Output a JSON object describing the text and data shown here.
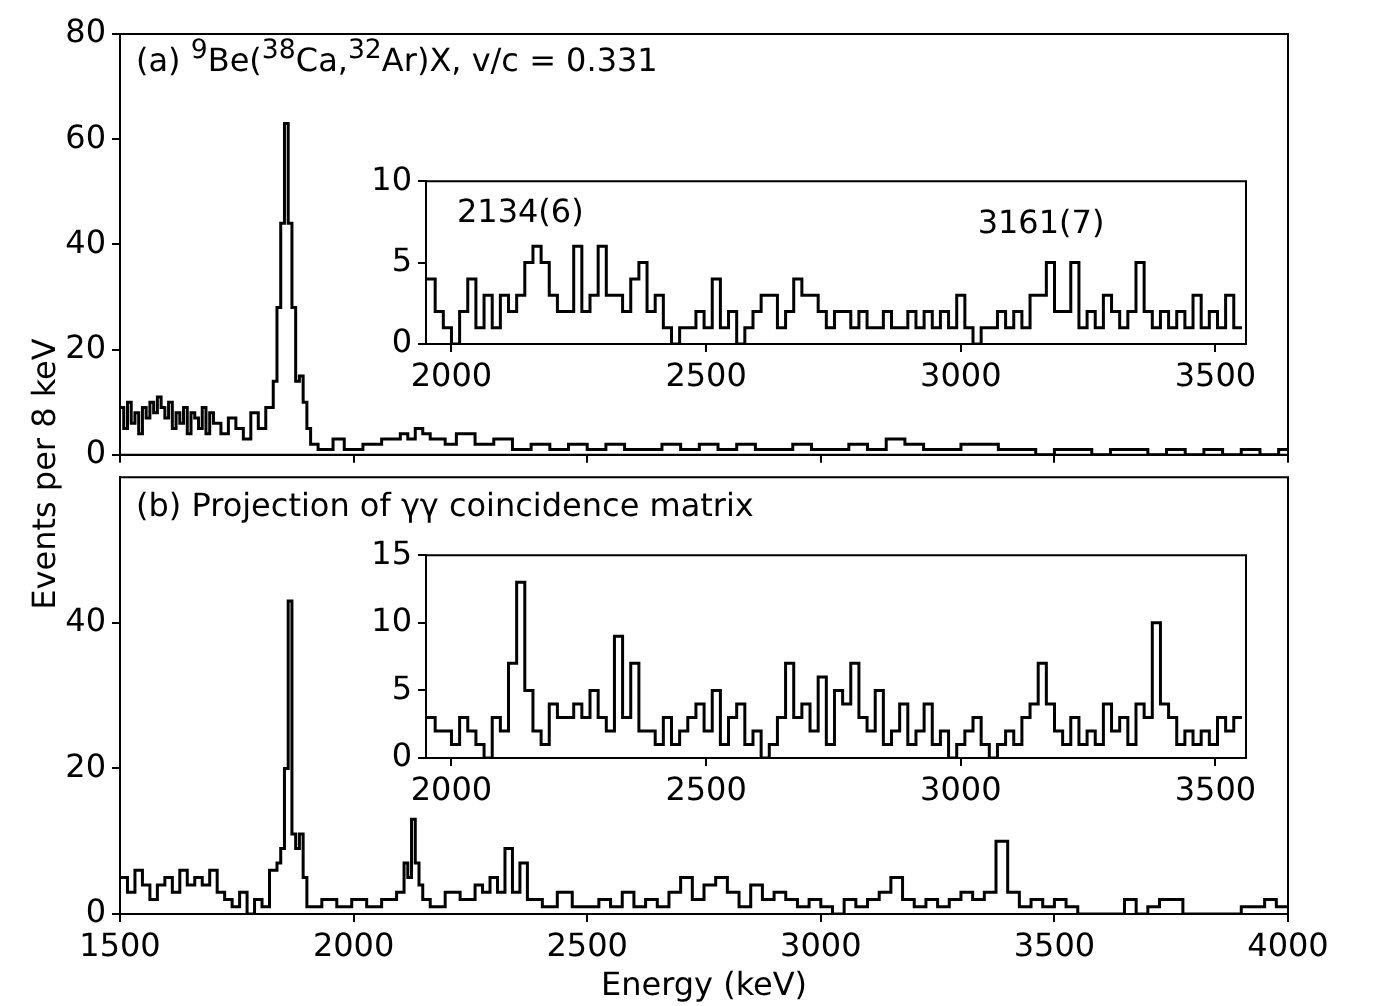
{
  "chart_data": [
    {
      "type": "histogram",
      "title": "(a) $^{9}$Be($^{38}$Ca,$^{32}$Ar)X, v/c = 0.331",
      "ylabel": "Events per 8 keV",
      "color": "#000000",
      "bins": [
        1500,
        1508,
        1516,
        1524,
        1532,
        1540,
        1548,
        1556,
        1564,
        1572,
        1580,
        1588,
        1596,
        1604,
        1612,
        1620,
        1628,
        1636,
        1644,
        1652,
        1660,
        1668,
        1676,
        1684,
        1692,
        1700,
        1716,
        1732,
        1748,
        1764,
        1780,
        1796,
        1812,
        1828,
        1836,
        1844,
        1852,
        1860,
        1868,
        1876,
        1884,
        1892,
        1900,
        1908,
        1924,
        1956,
        1980,
        2020,
        2060,
        2100,
        2116,
        2132,
        2148,
        2164,
        2196,
        2220,
        2260,
        2300,
        2340,
        2380,
        2420,
        2460,
        2500,
        2540,
        2580,
        2620,
        2660,
        2700,
        2740,
        2780,
        2820,
        2860,
        2900,
        2940,
        2980,
        3020,
        3060,
        3100,
        3140,
        3180,
        3220,
        3260,
        3300,
        3340,
        3380,
        3420,
        3460,
        3500,
        3540,
        3580,
        3620,
        3660,
        3700,
        3740,
        3780,
        3820,
        3860,
        3900,
        3940,
        3980,
        4000
      ],
      "values": [
        9,
        5,
        10,
        6,
        8,
        4,
        9,
        7,
        10,
        8,
        11,
        9,
        7,
        10,
        5,
        8,
        6,
        9,
        4,
        8,
        7,
        5,
        9,
        4,
        8,
        6,
        4,
        7,
        5,
        3,
        8,
        5,
        9,
        14,
        28,
        44,
        63,
        44,
        28,
        14,
        15,
        10,
        5,
        2,
        1,
        3,
        1,
        2,
        3,
        4,
        3,
        5,
        4,
        3,
        2,
        4,
        2,
        3,
        1,
        2,
        1,
        2,
        1,
        2,
        1,
        1,
        2,
        1,
        2,
        1,
        2,
        1,
        1,
        2,
        1,
        1,
        2,
        1,
        3,
        2,
        1,
        1,
        2,
        2,
        1,
        1,
        0,
        1,
        1,
        0,
        1,
        1,
        0,
        1,
        0,
        1,
        0,
        1,
        0,
        1
      ],
      "xlim": [
        1500,
        4000
      ],
      "xticks": [
        1500,
        2000,
        2500,
        3000,
        3500,
        4000
      ],
      "ylim": [
        0,
        80
      ],
      "yticks": [
        0,
        20,
        40,
        60,
        80
      ],
      "tick_labels": "y"
    },
    {
      "type": "histogram",
      "color": "#000000",
      "bins": [
        1952,
        1968,
        1984,
        2000,
        2016,
        2032,
        2048,
        2064,
        2080,
        2096,
        2112,
        2128,
        2144,
        2160,
        2176,
        2192,
        2208,
        2224,
        2240,
        2256,
        2272,
        2288,
        2304,
        2320,
        2336,
        2352,
        2368,
        2384,
        2400,
        2416,
        2432,
        2448,
        2464,
        2480,
        2496,
        2512,
        2528,
        2544,
        2560,
        2576,
        2592,
        2608,
        2624,
        2640,
        2656,
        2672,
        2688,
        2704,
        2720,
        2736,
        2752,
        2768,
        2784,
        2800,
        2816,
        2832,
        2848,
        2864,
        2880,
        2896,
        2912,
        2928,
        2944,
        2960,
        2976,
        2992,
        3008,
        3024,
        3040,
        3056,
        3072,
        3088,
        3104,
        3120,
        3136,
        3152,
        3168,
        3184,
        3200,
        3216,
        3232,
        3248,
        3264,
        3280,
        3296,
        3312,
        3328,
        3344,
        3360,
        3376,
        3392,
        3408,
        3424,
        3440,
        3456,
        3472,
        3488,
        3504,
        3520,
        3536,
        3552
      ],
      "values": [
        4,
        2,
        1,
        0,
        2,
        4,
        1,
        3,
        1,
        3,
        2,
        3,
        5,
        6,
        5,
        3,
        2,
        2,
        6,
        2,
        3,
        6,
        3,
        3,
        2,
        4,
        5,
        2,
        3,
        1,
        0,
        1,
        1,
        2,
        1,
        4,
        1,
        2,
        0,
        1,
        2,
        3,
        3,
        1,
        2,
        4,
        3,
        3,
        2,
        1,
        2,
        2,
        1,
        2,
        1,
        1,
        2,
        1,
        1,
        2,
        1,
        2,
        1,
        2,
        1,
        3,
        1,
        0,
        1,
        1,
        2,
        1,
        2,
        1,
        3,
        3,
        5,
        2,
        2,
        5,
        1,
        2,
        1,
        3,
        2,
        1,
        2,
        5,
        2,
        1,
        2,
        1,
        2,
        1,
        3,
        1,
        2,
        1,
        3,
        1
      ],
      "xlim": [
        1950,
        3560
      ],
      "xticks": [
        2000,
        2500,
        3000,
        3500
      ],
      "ylim": [
        0,
        10
      ],
      "yticks": [
        0,
        5,
        10
      ],
      "annotations": [
        "2134(6)",
        "3161(7)"
      ]
    },
    {
      "type": "histogram",
      "title": "(b) Projection of γγ coincidence matrix",
      "xlabel": "Energy (keV)",
      "color": "#000000",
      "bins": [
        1500,
        1516,
        1532,
        1548,
        1564,
        1580,
        1596,
        1612,
        1628,
        1644,
        1660,
        1676,
        1692,
        1708,
        1724,
        1740,
        1756,
        1772,
        1788,
        1804,
        1820,
        1836,
        1844,
        1852,
        1860,
        1868,
        1876,
        1884,
        1892,
        1900,
        1932,
        1964,
        1996,
        2028,
        2060,
        2092,
        2108,
        2116,
        2124,
        2132,
        2140,
        2148,
        2164,
        2196,
        2228,
        2260,
        2276,
        2292,
        2308,
        2324,
        2340,
        2356,
        2372,
        2404,
        2436,
        2468,
        2500,
        2525,
        2550,
        2575,
        2600,
        2625,
        2650,
        2675,
        2700,
        2725,
        2750,
        2775,
        2800,
        2825,
        2850,
        2875,
        2900,
        2925,
        2950,
        2975,
        3000,
        3025,
        3050,
        3075,
        3100,
        3125,
        3150,
        3175,
        3200,
        3225,
        3250,
        3275,
        3300,
        3325,
        3350,
        3375,
        3400,
        3425,
        3450,
        3475,
        3500,
        3525,
        3550,
        3575,
        3600,
        3625,
        3650,
        3675,
        3700,
        3725,
        3750,
        3775,
        3800,
        3825,
        3850,
        3875,
        3900,
        3925,
        3950,
        3975,
        4000
      ],
      "values": [
        5,
        3,
        6,
        4,
        2,
        4,
        5,
        3,
        6,
        4,
        5,
        4,
        6,
        3,
        2,
        1,
        3,
        0,
        2,
        1,
        6,
        7,
        9,
        20,
        43,
        11,
        9,
        11,
        5,
        1,
        2,
        1,
        2,
        1,
        2,
        3,
        7,
        5,
        13,
        7,
        4,
        2,
        1,
        3,
        2,
        4,
        3,
        5,
        3,
        9,
        3,
        7,
        2,
        1,
        3,
        1,
        1,
        2,
        1,
        3,
        1,
        2,
        1,
        3,
        5,
        2,
        4,
        5,
        3,
        1,
        4,
        2,
        3,
        2,
        1,
        2,
        1,
        0,
        2,
        1,
        2,
        3,
        5,
        2,
        1,
        2,
        1,
        2,
        3,
        2,
        3,
        10,
        3,
        1,
        2,
        1,
        2,
        1,
        0,
        0,
        0,
        0,
        2,
        0,
        1,
        2,
        2,
        0,
        0,
        0,
        0,
        0,
        1,
        1,
        2,
        1
      ],
      "xlim": [
        1500,
        4000
      ],
      "xticks": [
        1500,
        2000,
        2500,
        3000,
        3500,
        4000
      ],
      "ylim": [
        0,
        60
      ],
      "yticks": [
        0,
        20,
        40
      ]
    },
    {
      "type": "histogram",
      "color": "#000000",
      "bins": [
        1952,
        1968,
        1984,
        2000,
        2016,
        2032,
        2048,
        2064,
        2080,
        2096,
        2112,
        2128,
        2144,
        2160,
        2176,
        2192,
        2208,
        2224,
        2240,
        2256,
        2272,
        2288,
        2304,
        2320,
        2336,
        2352,
        2368,
        2384,
        2400,
        2416,
        2432,
        2448,
        2464,
        2480,
        2496,
        2512,
        2528,
        2544,
        2560,
        2576,
        2592,
        2608,
        2624,
        2640,
        2656,
        2672,
        2688,
        2704,
        2720,
        2736,
        2752,
        2768,
        2784,
        2800,
        2816,
        2832,
        2848,
        2864,
        2880,
        2896,
        2912,
        2928,
        2944,
        2960,
        2976,
        2992,
        3008,
        3024,
        3040,
        3056,
        3072,
        3088,
        3104,
        3120,
        3136,
        3152,
        3168,
        3184,
        3200,
        3216,
        3232,
        3248,
        3264,
        3280,
        3296,
        3312,
        3328,
        3344,
        3360,
        3376,
        3392,
        3408,
        3424,
        3440,
        3456,
        3472,
        3488,
        3504,
        3520,
        3536,
        3552
      ],
      "values": [
        3,
        2,
        2,
        1,
        3,
        2,
        1,
        0,
        3,
        2,
        7,
        13,
        5,
        2,
        1,
        4,
        3,
        3,
        4,
        3,
        5,
        3,
        2,
        9,
        3,
        7,
        2,
        2,
        1,
        3,
        1,
        2,
        3,
        4,
        2,
        5,
        1,
        3,
        4,
        1,
        2,
        0,
        1,
        3,
        7,
        3,
        4,
        2,
        6,
        1,
        5,
        4,
        7,
        3,
        2,
        5,
        1,
        2,
        4,
        1,
        2,
        4,
        1,
        2,
        0,
        1,
        2,
        3,
        1,
        0,
        1,
        2,
        1,
        3,
        4,
        7,
        4,
        2,
        1,
        3,
        1,
        2,
        1,
        4,
        2,
        3,
        1,
        4,
        3,
        10,
        4,
        3,
        1,
        2,
        1,
        2,
        1,
        3,
        2,
        3
      ],
      "xlim": [
        1950,
        3560
      ],
      "xticks": [
        2000,
        2500,
        3000,
        3500
      ],
      "ylim": [
        0,
        15
      ],
      "yticks": [
        0,
        5,
        10,
        15
      ]
    }
  ]
}
